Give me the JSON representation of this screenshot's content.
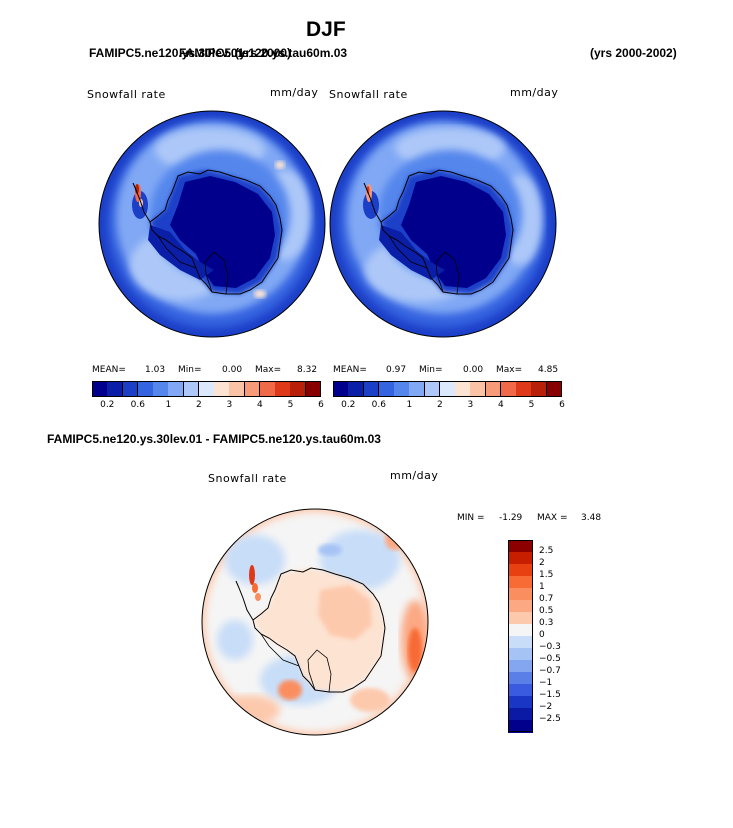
{
  "page": {
    "title": "DJF",
    "left_case": "FAMIPC5.ne120.ys.30lev.01",
    "center_case": "FAMIPC5.ne120.ys.tau60m.03",
    "overlap_year_label": "(yrs 2000)",
    "right_years": "(yrs 2000-2002)",
    "diff_title": "FAMIPC5.ne120.ys.30lev.01 - FAMIPC5.ne120.ys.tau60m.03"
  },
  "panel_left": {
    "label": "Snowfall rate",
    "units": "mm/day",
    "mean_label": "MEAN=",
    "mean": "1.03",
    "min_label": "Min=",
    "min": "0.00",
    "max_label": "Max=",
    "max": "8.32"
  },
  "panel_right": {
    "label": "Snowfall rate",
    "units": "mm/day",
    "mean_label": "MEAN=",
    "mean": "0.97",
    "min_label": "Min=",
    "min": "0.00",
    "max_label": "Max=",
    "max": "4.85"
  },
  "panel_diff": {
    "label": "Snowfall rate",
    "units": "mm/day",
    "min_label": "MIN =",
    "min": "-1.29",
    "max_label": "MAX =",
    "max": "3.48"
  },
  "colorbar_top": {
    "colors": [
      "#00008c",
      "#0a1ea8",
      "#1c3fc8",
      "#3464e0",
      "#5586ec",
      "#80a8f4",
      "#adc8f8",
      "#dce8fc",
      "#fde3d2",
      "#fbc3a6",
      "#f79a78",
      "#f06a4a",
      "#de3a1a",
      "#b8200a",
      "#880000"
    ],
    "ticks": [
      "0.2",
      "0.6",
      "1",
      "2",
      "3",
      "4",
      "5",
      "6"
    ]
  },
  "colorbar_diff": {
    "colors": [
      "#8c0000",
      "#c81e00",
      "#e84010",
      "#f86b35",
      "#fb8e5e",
      "#fca883",
      "#fdc9ad",
      "#f5f5f5",
      "#c7ddf8",
      "#a6c3f5",
      "#84a5f0",
      "#5a7fe6",
      "#3a5ae0",
      "#1a36c4",
      "#0a1aa4",
      "#00008c"
    ],
    "ticks": [
      "2.5",
      "2",
      "1.5",
      "1",
      "0.7",
      "0.5",
      "0.3",
      "0",
      "−0.3",
      "−0.5",
      "−0.7",
      "−1",
      "−1.5",
      "−2",
      "−2.5"
    ]
  }
}
